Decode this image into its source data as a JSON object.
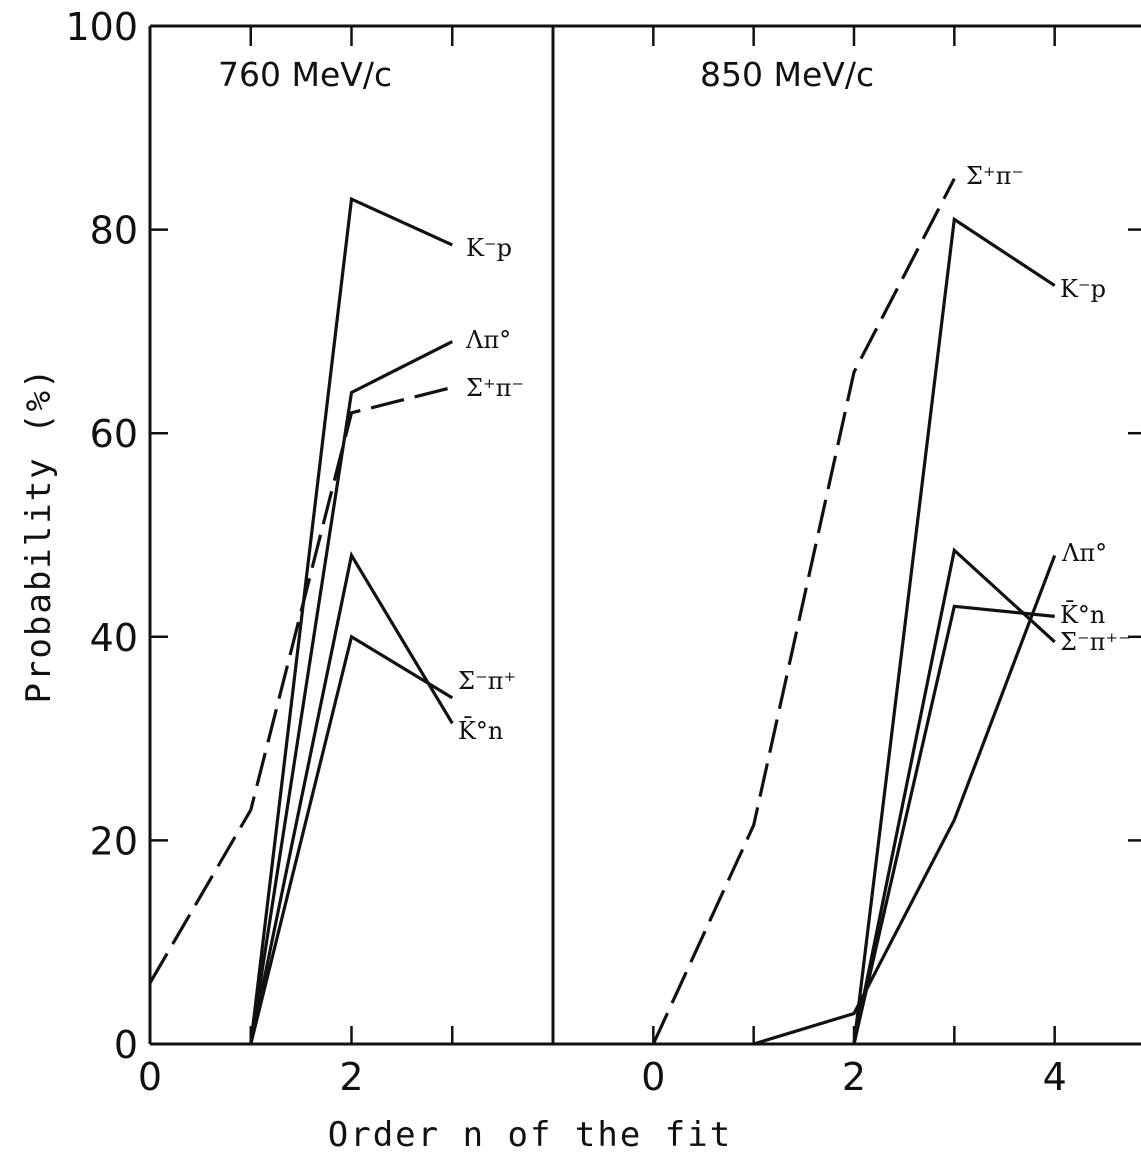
{
  "chart_data": [
    {
      "type": "line",
      "title": "760 MeV/c",
      "xlabel": "Order n of the fit",
      "ylabel": "Probability   (%)",
      "xlim": [
        0,
        4
      ],
      "ylim": [
        0,
        100
      ],
      "x_ticks": [
        0,
        1,
        2,
        3
      ],
      "x_tick_labels": [
        "0",
        "",
        "2",
        ""
      ],
      "y_ticks": [
        0,
        20,
        40,
        60,
        80,
        100
      ],
      "y_tick_labels": [
        "0",
        "20",
        "40",
        "60",
        "80",
        "100"
      ],
      "grid": false,
      "series": [
        {
          "name": "Σ⁺π⁻",
          "style": "dashed",
          "x": [
            0,
            1,
            2,
            3
          ],
          "y": [
            6,
            23,
            62,
            64.5
          ]
        },
        {
          "name": "K⁻p",
          "style": "solid",
          "x": [
            1,
            2,
            3
          ],
          "y": [
            0,
            83,
            78.5
          ]
        },
        {
          "name": "Λπ°",
          "style": "solid",
          "x": [
            1,
            2,
            3
          ],
          "y": [
            0,
            64,
            69
          ]
        },
        {
          "name": "Σ⁻π⁺",
          "style": "solid",
          "x": [
            1,
            2,
            3
          ],
          "y": [
            0,
            48,
            31.5
          ]
        },
        {
          "name": "K̄°n",
          "style": "solid",
          "x": [
            1,
            2,
            3
          ],
          "y": [
            0,
            40,
            34
          ]
        }
      ]
    },
    {
      "type": "line",
      "title": "850 MeV/c",
      "xlabel": "Order n of the fit",
      "ylabel": "",
      "xlim": [
        -1,
        5
      ],
      "ylim": [
        0,
        100
      ],
      "x_ticks": [
        -1,
        0,
        1,
        2,
        3,
        4
      ],
      "x_tick_labels": [
        "",
        "0",
        "",
        "2",
        "",
        "4"
      ],
      "y_ticks": [
        0,
        20,
        40,
        60,
        80,
        100
      ],
      "grid": false,
      "series": [
        {
          "name": "Σ⁺π⁻",
          "style": "dashed",
          "x": [
            0,
            1,
            2,
            3
          ],
          "y": [
            0,
            21.5,
            66,
            85
          ]
        },
        {
          "name": "K⁻p",
          "style": "solid",
          "x": [
            2,
            3,
            4
          ],
          "y": [
            0,
            81,
            74.5
          ]
        },
        {
          "name": "Λπ°",
          "style": "solid",
          "x": [
            1,
            2,
            3,
            4
          ],
          "y": [
            0,
            3,
            22,
            48
          ]
        },
        {
          "name": "Σ⁻π⁺",
          "style": "solid",
          "x": [
            2,
            3,
            4
          ],
          "y": [
            0,
            48.5,
            39.5
          ]
        },
        {
          "name": "K̄°n",
          "style": "solid",
          "x": [
            2,
            3,
            4
          ],
          "y": [
            0,
            43,
            42
          ]
        }
      ]
    }
  ],
  "labels": {
    "left": {
      "kp": "K⁻p",
      "lambda": "Λπ°",
      "sigma_plus": "Σ⁺π⁻",
      "sigma_minus": "Σ⁻π⁺",
      "k0n": "K̄°n"
    },
    "right": {
      "sigma_plus": "Σ⁺π⁻",
      "kp": "K⁻p",
      "lambda": "Λπ°",
      "k0n": "K̄°n",
      "sigma_minus": "Σ⁻π⁺⁻"
    }
  }
}
